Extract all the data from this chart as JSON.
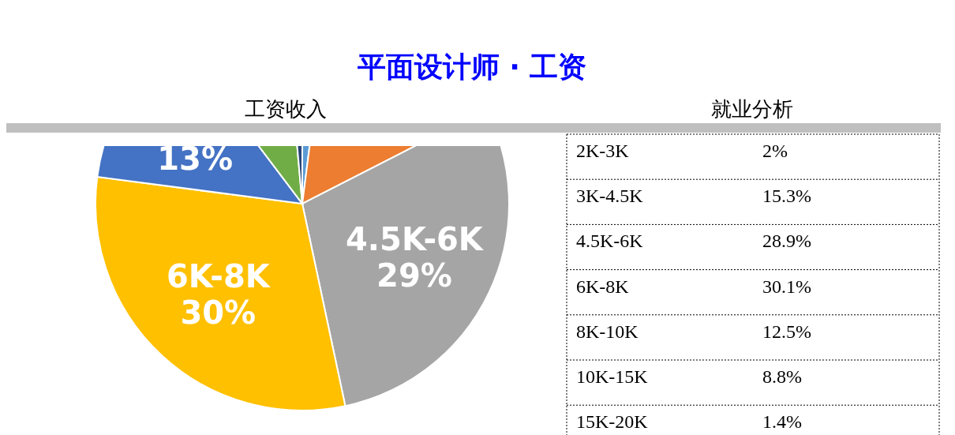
{
  "chart_data": [
    {
      "type": "pie",
      "title": "平面设计师 · 工资",
      "subtitle": "工资收入",
      "categories": [
        null,
        null,
        "4.5K-6K",
        "6K-8K",
        null,
        null,
        null
      ],
      "values": [
        2,
        15.3,
        28.9,
        30.1,
        12.5,
        8.8,
        1.4
      ],
      "colors": [
        "#5b9bd5",
        "#ed7d31",
        "#a5a5a5",
        "#ffc000",
        "#4472c4",
        "#70ad47",
        "#264478"
      ],
      "value_labels": [
        null,
        null,
        "29%",
        "30%",
        "13%",
        null,
        null
      ]
    },
    {
      "type": "other",
      "title": "就业分析",
      "categories": [
        "2K-3K",
        "3K-4.5K",
        "4.5K-6K",
        "6K-8K",
        "8K-10K",
        "10K-15K",
        "15K-20K"
      ],
      "value_labels": [
        "2%",
        "15.3%",
        "28.9%",
        "30.1%",
        "12.5%",
        "8.8%",
        "1.4%"
      ]
    }
  ]
}
